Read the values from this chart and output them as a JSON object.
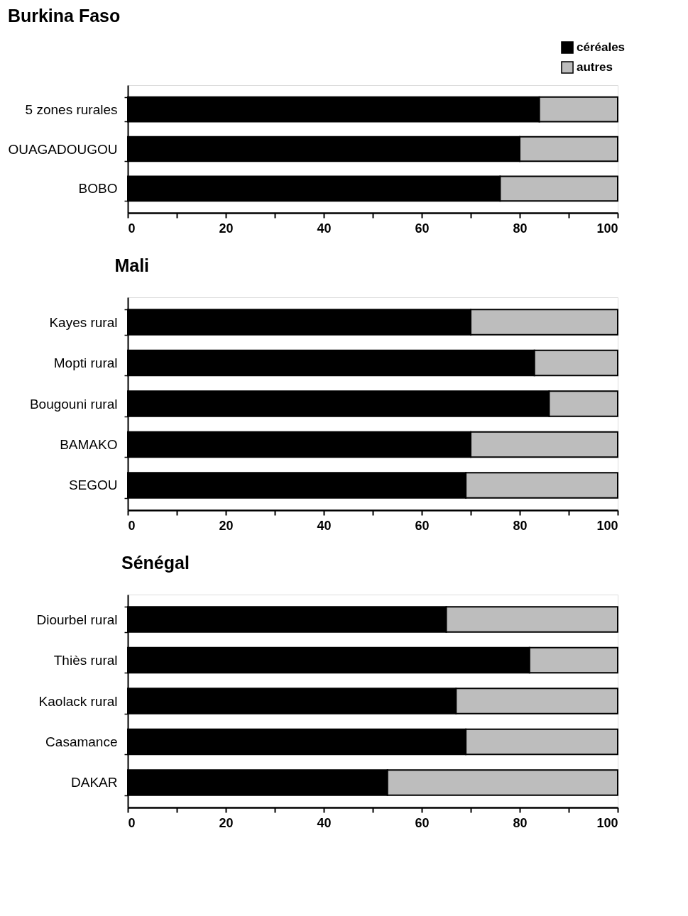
{
  "chart_data": [
    {
      "type": "bar",
      "orientation": "horizontal",
      "stacked": true,
      "title": "Burkina Faso",
      "legend": "top right",
      "grid": false,
      "categories": [
        "5 zones rurales",
        "OUAGADOUGOU",
        "BOBO"
      ],
      "series": [
        {
          "name": "céréales",
          "color": "#000000",
          "values": [
            84,
            80,
            76
          ]
        },
        {
          "name": "autres",
          "color": "#bdbdbd",
          "values": [
            16,
            20,
            24
          ]
        }
      ],
      "xlim": [
        0,
        100
      ],
      "xticks": [
        0,
        {
          "value": 10,
          "label": null
        },
        20,
        {
          "value": 30,
          "label": null
        },
        40,
        {
          "value": 50,
          "label": null
        },
        60,
        {
          "value": 70,
          "label": null
        },
        80,
        {
          "value": 90,
          "label": null
        },
        100
      ]
    },
    {
      "type": "bar",
      "orientation": "horizontal",
      "stacked": true,
      "title": "Mali",
      "legend": false,
      "grid": false,
      "categories": [
        "Kayes rural",
        "Mopti rural",
        "Bougouni rural",
        "BAMAKO",
        "SEGOU"
      ],
      "series": [
        {
          "color": "#000000",
          "values": [
            70,
            83,
            86,
            70,
            69
          ]
        },
        {
          "color": "#bdbdbd",
          "values": [
            30,
            17,
            14,
            30,
            31
          ]
        }
      ],
      "xlim": [
        0,
        100
      ],
      "xticks": [
        0,
        {
          "value": 10,
          "label": null
        },
        20,
        {
          "value": 30,
          "label": null
        },
        40,
        {
          "value": 50,
          "label": null
        },
        60,
        {
          "value": 70,
          "label": null
        },
        80,
        {
          "value": 90,
          "label": null
        },
        100
      ]
    },
    {
      "type": "bar",
      "orientation": "horizontal",
      "stacked": true,
      "title": "Sénégal",
      "legend": false,
      "grid": false,
      "categories": [
        "Diourbel rural",
        "Thiès rural",
        "Kaolack rural",
        "Casamance",
        "DAKAR"
      ],
      "series": [
        {
          "color": "#000000",
          "values": [
            65,
            82,
            67,
            69,
            53
          ]
        },
        {
          "color": "#bdbdbd",
          "values": [
            35,
            18,
            33,
            31,
            47
          ]
        }
      ],
      "xlim": [
        0,
        100
      ],
      "xticks": [
        0,
        {
          "value": 10,
          "label": null
        },
        20,
        {
          "value": 30,
          "label": null
        },
        40,
        {
          "value": 50,
          "label": null
        },
        60,
        {
          "value": 70,
          "label": null
        },
        80,
        {
          "value": 90,
          "label": null
        },
        100
      ]
    }
  ]
}
